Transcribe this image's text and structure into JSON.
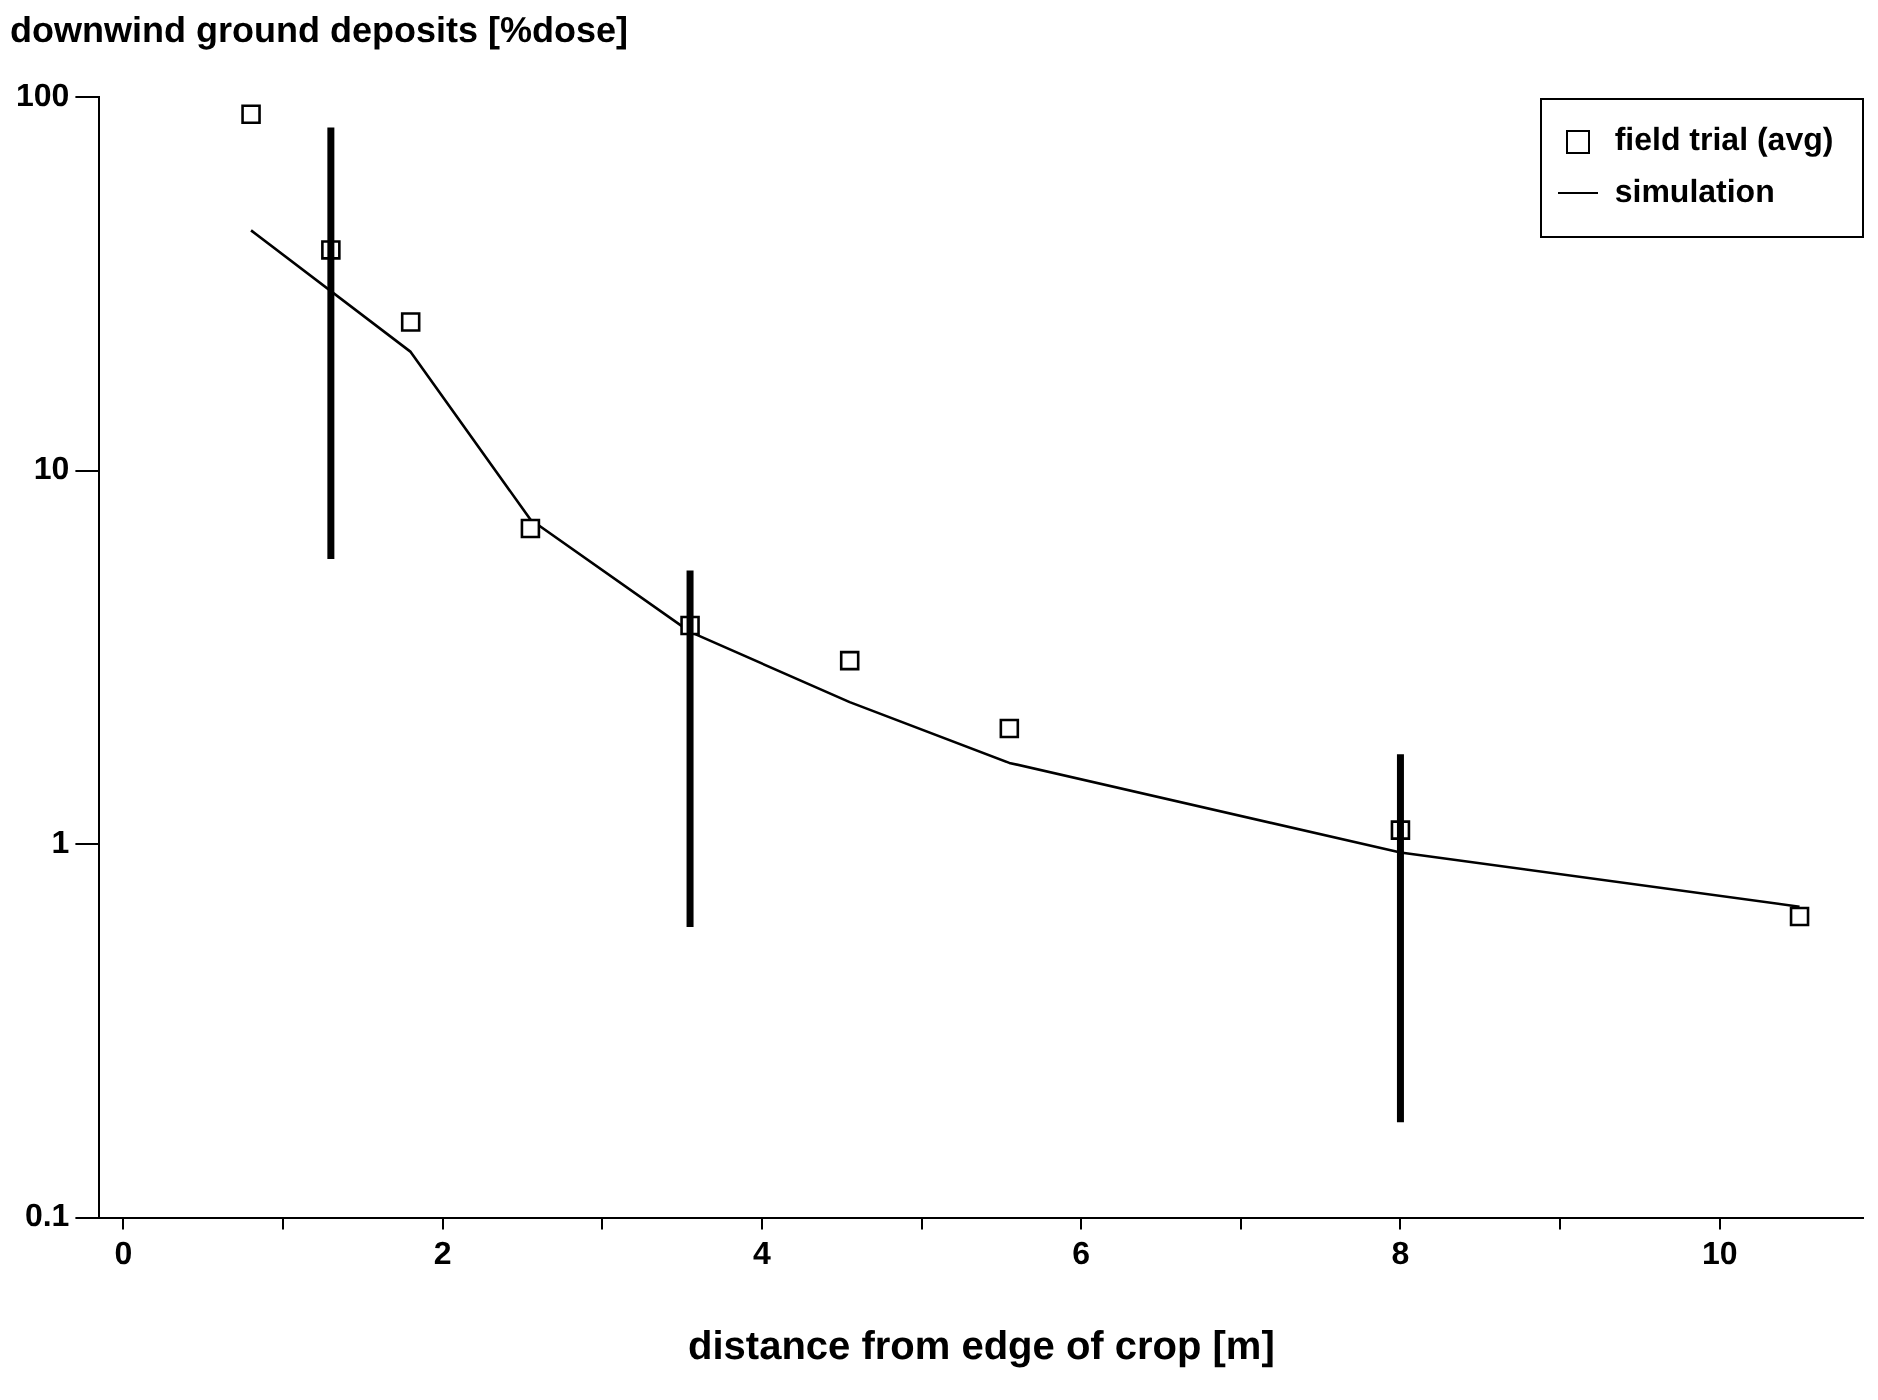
{
  "chart_data": {
    "type": "scatter",
    "title": "downwind ground deposits [%dose]",
    "xlabel": "distance from edge of crop [m]",
    "log": "y",
    "legend": "top right",
    "xlim": [
      -0.15,
      10.9
    ],
    "xticks": [
      0,
      {
        "value": 1,
        "label": null
      },
      2,
      {
        "value": 3,
        "label": null
      },
      4,
      {
        "value": 5,
        "label": null
      },
      6,
      {
        "value": 7,
        "label": null
      },
      8,
      {
        "value": 9,
        "label": null
      },
      10
    ],
    "ylim": [
      0.1,
      100
    ],
    "yticks": [
      0.1,
      1,
      10,
      100
    ],
    "series": [
      {
        "name": "field trial (avg)",
        "marker": "square",
        "color": "#000000",
        "x": [
          0.8,
          1.3,
          1.8,
          2.55,
          3.55,
          4.55,
          5.55,
          8,
          10.5
        ],
        "values": [
          90,
          39,
          25,
          7.0,
          3.85,
          3.1,
          2.04,
          1.09,
          0.64
        ],
        "errors": [
          null,
          [
            5.8,
            83
          ],
          null,
          null,
          [
            0.6,
            5.4
          ],
          null,
          null,
          [
            0.18,
            1.74
          ],
          null
        ]
      },
      {
        "name": "simulation",
        "type": "line",
        "color": "#000000",
        "x": [
          0.8,
          1.8,
          2.55,
          3.55,
          4.55,
          5.55,
          8,
          10.5
        ],
        "values": [
          44,
          20.8,
          7.4,
          3.7,
          2.4,
          1.65,
          0.95,
          0.68
        ]
      }
    ]
  }
}
